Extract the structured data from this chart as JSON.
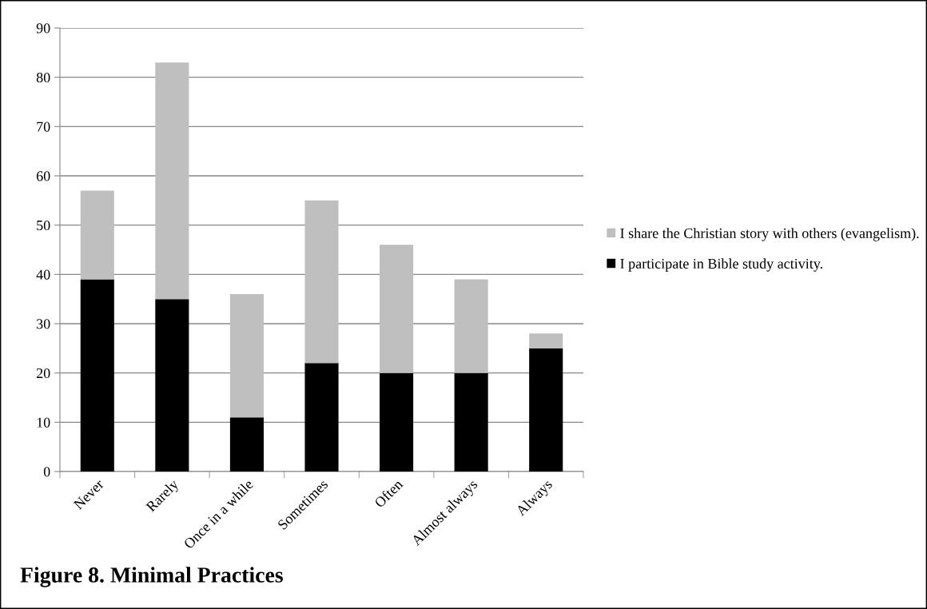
{
  "chart_data": {
    "type": "bar",
    "title": "Figure 8. Minimal Practices",
    "stacked": true,
    "categories": [
      "Never",
      "Rarely",
      "Once in a while",
      "Sometimes",
      "Often",
      "Almost always",
      "Always"
    ],
    "series": [
      {
        "name": "I participate in Bible study activity.",
        "color": "#000000",
        "values": [
          39,
          35,
          11,
          22,
          20,
          20,
          25
        ]
      },
      {
        "name": "I share the Christian story with others (evangelism).",
        "color": "#bfbfbf",
        "values": [
          18,
          48,
          25,
          33,
          26,
          19,
          3
        ]
      }
    ],
    "ylim": [
      0,
      90
    ],
    "yticks": [
      0,
      10,
      20,
      30,
      40,
      50,
      60,
      70,
      80,
      90
    ],
    "grid": "y",
    "legend": "right"
  }
}
